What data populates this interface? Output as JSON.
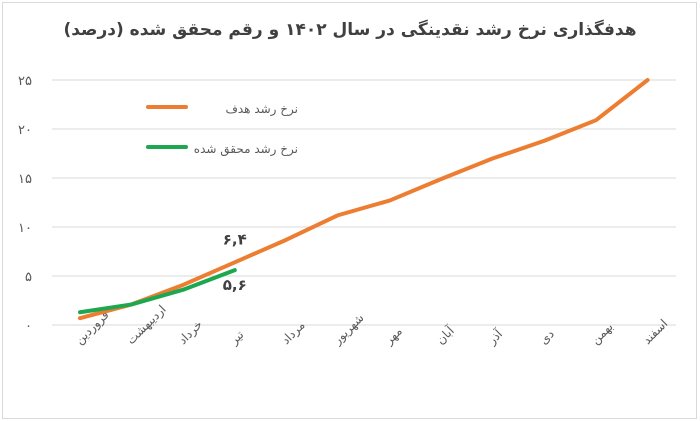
{
  "chart_data": {
    "type": "line",
    "title": "هدفگذاری نرخ رشد نقدینگی در سال ۱۴۰۲ و رقم محقق شده (درصد)",
    "xlabel": "",
    "ylabel": "",
    "ylim": [
      0,
      25
    ],
    "yticks": [
      "۰",
      "۵",
      "۱۰",
      "۱۵",
      "۲۰",
      "۲۵"
    ],
    "ytick_values": [
      0,
      5,
      10,
      15,
      20,
      25
    ],
    "grid": true,
    "legend_position": "upper-left",
    "categories": [
      "فروردین",
      "اردیبهشت",
      "خرداد",
      "تیر",
      "مرداد",
      "شهریور",
      "مهر",
      "آبان",
      "آذر",
      "دی",
      "بهمن",
      "اسفند"
    ],
    "series": [
      {
        "name": "نرخ رشد هدف",
        "color": "#ED7D31",
        "values": [
          0.7,
          2.1,
          4.1,
          6.4,
          8.7,
          11.2,
          12.7,
          14.9,
          17.0,
          18.8,
          20.9,
          25.0
        ]
      },
      {
        "name": "نرخ رشد محقق شده",
        "color": "#1DA750",
        "values": [
          1.3,
          2.1,
          3.6,
          5.6,
          null,
          null,
          null,
          null,
          null,
          null,
          null,
          null
        ]
      }
    ],
    "annotations": [
      {
        "text": "۶,۴",
        "category": "تیر",
        "series": "نرخ رشد هدف",
        "value": 6.4
      },
      {
        "text": "۵,۶",
        "category": "تیر",
        "series": "نرخ رشد محقق شده",
        "value": 5.6
      }
    ]
  }
}
